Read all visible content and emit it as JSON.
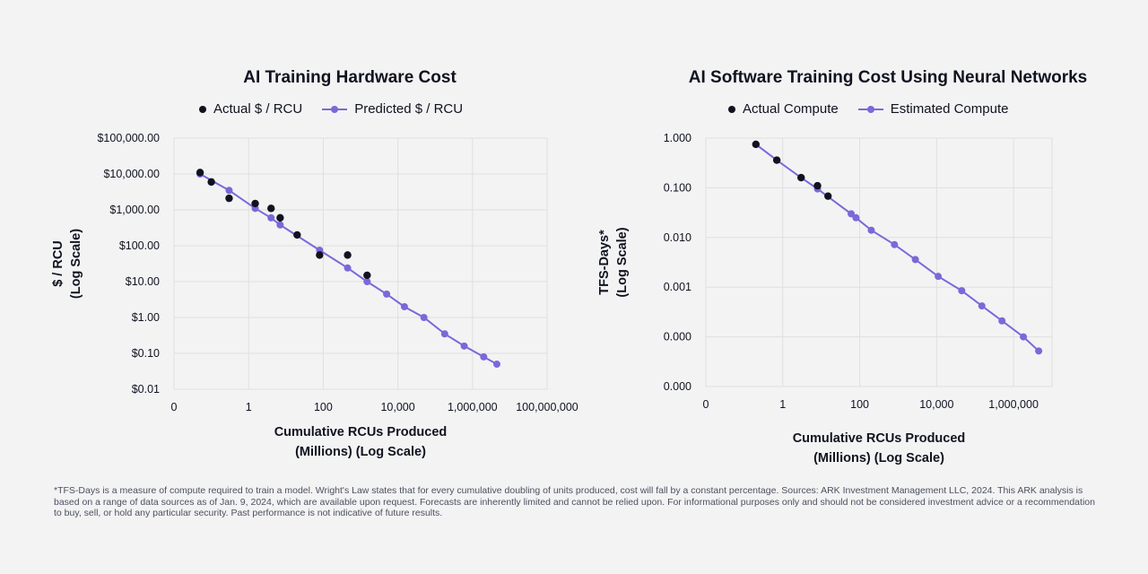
{
  "colors": {
    "actual": "#10131f",
    "predicted": "#7b68d9",
    "grid": "#dde1dd",
    "text": "#10131f"
  },
  "footnote": {
    "text": "*TFS-Days is a measure of compute required to train a model. Wright's Law states that for every cumulative doubling of units produced, cost will fall by a constant percentage. Sources: ARK Investment Management LLC, 2024. This ARK analysis is based on a range of data sources as of Jan. 9, 2024, which are available upon request. Forecasts are inherently limited and cannot be relied upon. For informational purposes only and should not be considered investment advice or a recommendation to buy, sell, or hold any particular security. Past performance is not indicative of future results."
  },
  "chart_data": [
    {
      "type": "scatter",
      "title": "AI Training Hardware Cost",
      "legend": [
        "Actual $ / RCU",
        "Predicted $ / RCU"
      ],
      "ylabel": "$ / RCU",
      "ylabel2": "(Log Scale)",
      "xlabel": "Cumulative RCUs Produced",
      "xlabel2": "(Millions) (Log Scale)",
      "x_scale": "log",
      "y_scale": "log",
      "xlim": [
        0.01,
        100000000
      ],
      "ylim": [
        0.01,
        100000
      ],
      "x_ticks": [
        0.01,
        1,
        100,
        10000,
        1000000,
        100000000
      ],
      "x_tick_labels": [
        "0",
        "1",
        "100",
        "10,000",
        "1,000,000",
        "100,000,000"
      ],
      "y_ticks": [
        0.01,
        0.1,
        1,
        10,
        100,
        1000,
        10000,
        100000
      ],
      "y_tick_labels": [
        "$0.01",
        "$0.10",
        "$1.00",
        "$10.00",
        "$100.00",
        "$1,000.00",
        "$10,000.00",
        "$100,000.00"
      ],
      "series": [
        {
          "name": "Actual $ / RCU",
          "kind": "points",
          "x": [
            0.05,
            0.1,
            0.3,
            1.5,
            4,
            7,
            20,
            80,
            450,
            1500
          ],
          "y": [
            11000,
            6000,
            2100,
            1500,
            1100,
            600,
            200,
            55,
            55,
            15
          ]
        },
        {
          "name": "Predicted $ / RCU",
          "kind": "line",
          "x": [
            0.05,
            0.3,
            1.5,
            4,
            7,
            80,
            450,
            1500,
            5000,
            15000,
            50000,
            180000,
            600000,
            2000000,
            4500000
          ],
          "y": [
            10000,
            3500,
            1100,
            600,
            380,
            75,
            24,
            10,
            4.5,
            2.0,
            1.0,
            0.35,
            0.16,
            0.08,
            0.05
          ]
        }
      ]
    },
    {
      "type": "scatter",
      "title": "AI Software Training Cost Using Neural Networks",
      "legend": [
        "Actual Compute",
        "Estimated Compute"
      ],
      "ylabel": "TFS-Days*",
      "ylabel2": "(Log Scale)",
      "xlabel": "Cumulative RCUs Produced",
      "xlabel2": "(Millions) (Log Scale)",
      "x_scale": "log",
      "y_scale": "log",
      "xlim": [
        0.01,
        10000000
      ],
      "ylim": [
        1e-05,
        1
      ],
      "x_ticks": [
        0.01,
        1,
        100,
        10000,
        1000000
      ],
      "x_tick_labels": [
        "0",
        "1",
        "100",
        "10,000",
        "1,000,000"
      ],
      "y_ticks": [
        1e-05,
        0.0001,
        0.001,
        0.01,
        0.1,
        1
      ],
      "y_tick_labels": [
        "0.000",
        "0.000",
        "0.001",
        "0.010",
        "0.100",
        "1.000"
      ],
      "series": [
        {
          "name": "Actual Compute",
          "kind": "points",
          "x": [
            0.2,
            0.7,
            3,
            8,
            15
          ],
          "y": [
            0.75,
            0.36,
            0.16,
            0.11,
            0.068
          ]
        },
        {
          "name": "Estimated Compute",
          "kind": "line",
          "x": [
            0.2,
            0.7,
            3,
            8,
            60,
            80,
            200,
            800,
            2800,
            11000,
            45000,
            150000,
            500000,
            1800000,
            4500000
          ],
          "y": [
            0.75,
            0.36,
            0.16,
            0.095,
            0.03,
            0.025,
            0.014,
            0.0072,
            0.0036,
            0.00165,
            0.00085,
            0.00042,
            0.00021,
            0.0001,
            5.2e-05
          ]
        }
      ]
    }
  ]
}
